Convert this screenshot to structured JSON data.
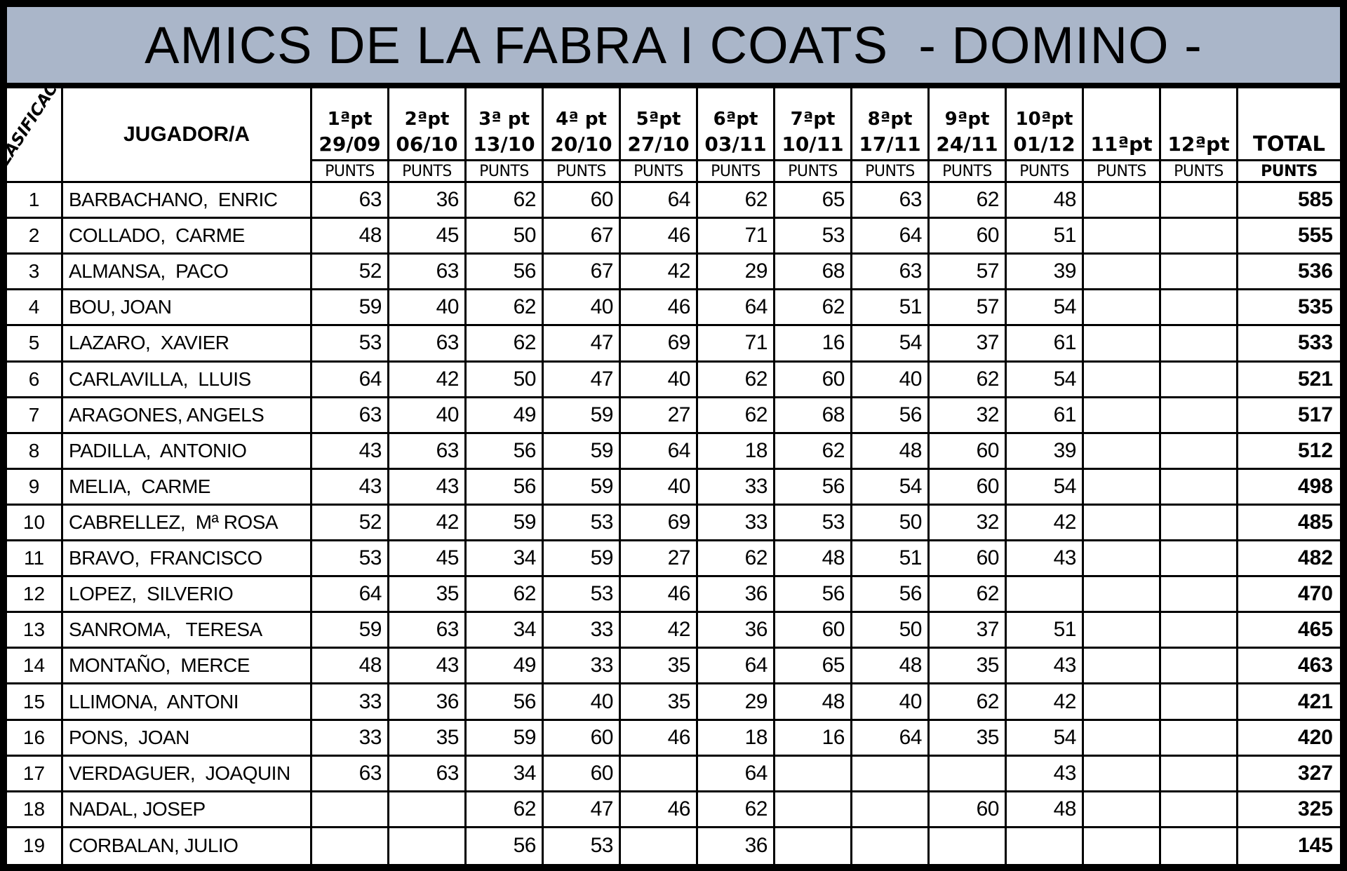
{
  "title": "AMICS DE LA FABRA I COATS  - DOMINO -",
  "title_bg": "#aab6c9",
  "rank_header": "CLASIFICACIÓ",
  "player_header": "JUGADOR/A",
  "punts_label": "PUNTS",
  "total_header": {
    "line1": "TOTAL",
    "line2": "PUNTS"
  },
  "columns": [
    {
      "line1": "1ªpt",
      "line2": "29/09"
    },
    {
      "line1": "2ªpt",
      "line2": "06/10"
    },
    {
      "line1": "3ª pt",
      "line2": "13/10"
    },
    {
      "line1": "4ª pt",
      "line2": "20/10"
    },
    {
      "line1": "5ªpt",
      "line2": "27/10"
    },
    {
      "line1": "6ªpt",
      "line2": "03/11"
    },
    {
      "line1": "7ªpt",
      "line2": "10/11"
    },
    {
      "line1": "8ªpt",
      "line2": "17/11"
    },
    {
      "line1": "9ªpt",
      "line2": "24/11"
    },
    {
      "line1": "10ªpt",
      "line2": "01/12"
    },
    {
      "line1": "",
      "line2": "11ªpt"
    },
    {
      "line1": "",
      "line2": "12ªpt"
    }
  ],
  "rows": [
    {
      "rank": "1",
      "name": "BARBACHANO,  ENRIC",
      "scores": [
        "63",
        "36",
        "62",
        "60",
        "64",
        "62",
        "65",
        "63",
        "62",
        "48",
        "",
        ""
      ],
      "total": "585"
    },
    {
      "rank": "2",
      "name": "COLLADO,  CARME",
      "scores": [
        "48",
        "45",
        "50",
        "67",
        "46",
        "71",
        "53",
        "64",
        "60",
        "51",
        "",
        ""
      ],
      "total": "555"
    },
    {
      "rank": "3",
      "name": "ALMANSA,  PACO",
      "scores": [
        "52",
        "63",
        "56",
        "67",
        "42",
        "29",
        "68",
        "63",
        "57",
        "39",
        "",
        ""
      ],
      "total": "536"
    },
    {
      "rank": "4",
      "name": "BOU, JOAN",
      "scores": [
        "59",
        "40",
        "62",
        "40",
        "46",
        "64",
        "62",
        "51",
        "57",
        "54",
        "",
        ""
      ],
      "total": "535"
    },
    {
      "rank": "5",
      "name": "LAZARO,  XAVIER",
      "scores": [
        "53",
        "63",
        "62",
        "47",
        "69",
        "71",
        "16",
        "54",
        "37",
        "61",
        "",
        ""
      ],
      "total": "533"
    },
    {
      "rank": "6",
      "name": "CARLAVILLA,  LLUIS",
      "scores": [
        "64",
        "42",
        "50",
        "47",
        "40",
        "62",
        "60",
        "40",
        "62",
        "54",
        "",
        ""
      ],
      "total": "521"
    },
    {
      "rank": "7",
      "name": "ARAGONES, ANGELS",
      "scores": [
        "63",
        "40",
        "49",
        "59",
        "27",
        "62",
        "68",
        "56",
        "32",
        "61",
        "",
        ""
      ],
      "total": "517"
    },
    {
      "rank": "8",
      "name": "PADILLA,  ANTONIO",
      "scores": [
        "43",
        "63",
        "56",
        "59",
        "64",
        "18",
        "62",
        "48",
        "60",
        "39",
        "",
        ""
      ],
      "total": "512"
    },
    {
      "rank": "9",
      "name": "MELIA,  CARME",
      "scores": [
        "43",
        "43",
        "56",
        "59",
        "40",
        "33",
        "56",
        "54",
        "60",
        "54",
        "",
        ""
      ],
      "total": "498"
    },
    {
      "rank": "10",
      "name": "CABRELLEZ,  Mª ROSA",
      "scores": [
        "52",
        "42",
        "59",
        "53",
        "69",
        "33",
        "53",
        "50",
        "32",
        "42",
        "",
        ""
      ],
      "total": "485"
    },
    {
      "rank": "11",
      "name": "BRAVO,  FRANCISCO",
      "scores": [
        "53",
        "45",
        "34",
        "59",
        "27",
        "62",
        "48",
        "51",
        "60",
        "43",
        "",
        ""
      ],
      "total": "482"
    },
    {
      "rank": "12",
      "name": "LOPEZ,  SILVERIO",
      "scores": [
        "64",
        "35",
        "62",
        "53",
        "46",
        "36",
        "56",
        "56",
        "62",
        "",
        "",
        ""
      ],
      "total": "470"
    },
    {
      "rank": "13",
      "name": "SANROMA,   TERESA",
      "scores": [
        "59",
        "63",
        "34",
        "33",
        "42",
        "36",
        "60",
        "50",
        "37",
        "51",
        "",
        ""
      ],
      "total": "465"
    },
    {
      "rank": "14",
      "name": "MONTAÑO,  MERCE",
      "scores": [
        "48",
        "43",
        "49",
        "33",
        "35",
        "64",
        "65",
        "48",
        "35",
        "43",
        "",
        ""
      ],
      "total": "463"
    },
    {
      "rank": "15",
      "name": "LLIMONA,  ANTONI",
      "scores": [
        "33",
        "36",
        "56",
        "40",
        "35",
        "29",
        "48",
        "40",
        "62",
        "42",
        "",
        ""
      ],
      "total": "421"
    },
    {
      "rank": "16",
      "name": "PONS,  JOAN",
      "scores": [
        "33",
        "35",
        "59",
        "60",
        "46",
        "18",
        "16",
        "64",
        "35",
        "54",
        "",
        ""
      ],
      "total": "420"
    },
    {
      "rank": "17",
      "name": "VERDAGUER,  JOAQUIN",
      "scores": [
        "63",
        "63",
        "34",
        "60",
        "",
        "64",
        "",
        "",
        "",
        "43",
        "",
        ""
      ],
      "total": "327"
    },
    {
      "rank": "18",
      "name": "NADAL, JOSEP",
      "scores": [
        "",
        "",
        "62",
        "47",
        "46",
        "62",
        "",
        "",
        "60",
        "48",
        "",
        ""
      ],
      "total": "325"
    },
    {
      "rank": "19",
      "name": "CORBALAN, JULIO",
      "scores": [
        "",
        "",
        "56",
        "53",
        "",
        "36",
        "",
        "",
        "",
        "",
        "",
        ""
      ],
      "total": "145"
    }
  ]
}
